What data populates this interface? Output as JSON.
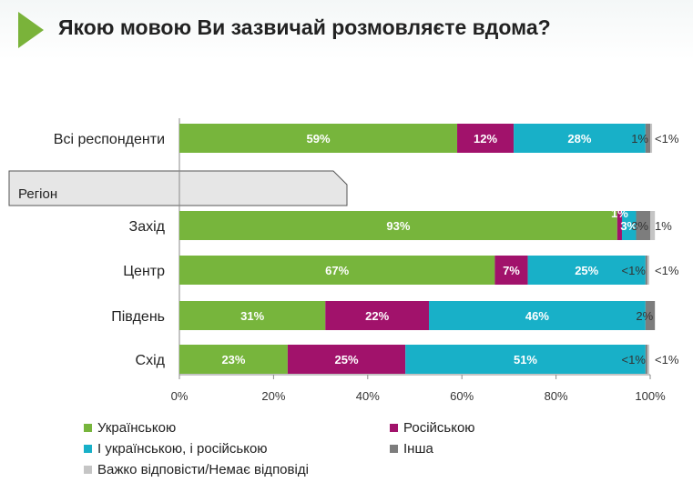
{
  "title": "Якою мовою Ви зазвичай розмовляєте вдома?",
  "colors": {
    "accent_triangle": "#7ab33a",
    "region_tab_fill": "#e6e6e6"
  },
  "chart_data": {
    "type": "bar",
    "orientation": "horizontal",
    "stacked": true,
    "xlim": [
      0,
      100
    ],
    "x_ticks": [
      "0%",
      "20%",
      "40%",
      "60%",
      "80%",
      "100%"
    ],
    "group_label": "Регіон",
    "categories": [
      "Всі респонденти",
      "Захід",
      "Центр",
      "Південь",
      "Схід"
    ],
    "series": [
      {
        "name": "Українською",
        "color": "#77b53c",
        "label_color": "#ffffff",
        "values": [
          59,
          93,
          67,
          31,
          23
        ],
        "labels": [
          "59%",
          "93%",
          "67%",
          "31%",
          "23%"
        ]
      },
      {
        "name": "Російською",
        "color": "#a1126b",
        "label_color": "#ffffff",
        "values": [
          12,
          1,
          7,
          22,
          25
        ],
        "labels": [
          "12%",
          "1%",
          "7%",
          "22%",
          "25%"
        ]
      },
      {
        "name": "І українською, і російською",
        "color": "#18b0c8",
        "label_color": "#ffffff",
        "values": [
          28,
          3,
          25,
          46,
          51
        ],
        "labels": [
          "28%",
          "3%",
          "25%",
          "46%",
          "51%"
        ]
      },
      {
        "name": "Інша",
        "color": "#7d7d7d",
        "label_color": "#333333",
        "values": [
          1,
          3,
          0.4,
          2,
          0.4
        ],
        "labels": [
          "1%",
          "3%",
          "<1%",
          "2%",
          "<1%"
        ]
      },
      {
        "name": "Важко відповісти/Немає відповіді",
        "color": "#c5c5c5",
        "label_color": "#333333",
        "values": [
          0.4,
          1,
          0.4,
          0,
          0.4
        ],
        "labels": [
          "<1%",
          "1%",
          "<1%",
          "",
          "<1%"
        ]
      }
    ]
  }
}
